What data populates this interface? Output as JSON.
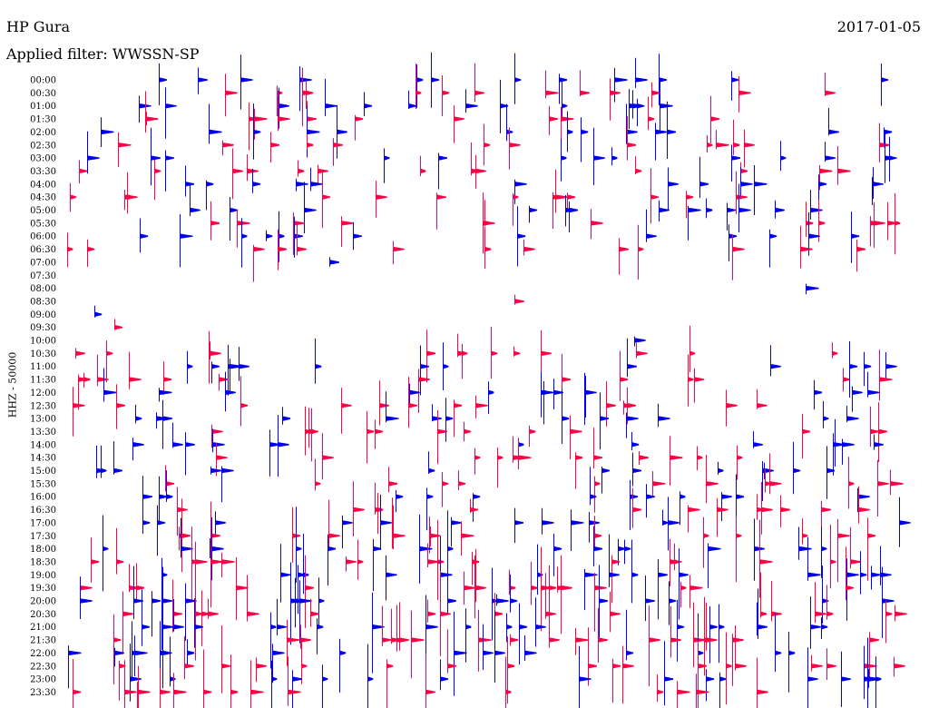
{
  "header": {
    "station": "HP Gura",
    "date": "2017-01-05",
    "filter_text": "Applied filter: WWSSN-SP"
  },
  "chart_data": {
    "type": "line",
    "title": "HP Gura",
    "subtitle": "Applied filter: WWSSN-SP",
    "date": "2017-01-05",
    "ylabel": "HHZ - 50000",
    "xlabel": "",
    "grid": false,
    "legend": "none",
    "colors": [
      "#0000ee",
      "#ff0044"
    ],
    "row_labels": [
      "00:00",
      "00:30",
      "01:00",
      "01:30",
      "02:00",
      "02:30",
      "03:00",
      "03:30",
      "04:00",
      "04:30",
      "05:00",
      "05:30",
      "06:00",
      "06:30",
      "07:00",
      "07:30",
      "08:00",
      "08:30",
      "09:00",
      "09:30",
      "10:00",
      "10:30",
      "11:00",
      "11:30",
      "12:00",
      "12:30",
      "13:00",
      "13:30",
      "14:00",
      "14:30",
      "15:00",
      "15:30",
      "16:00",
      "16:30",
      "17:00",
      "17:30",
      "18:00",
      "18:30",
      "19:00",
      "19:30",
      "20:00",
      "20:30",
      "21:00",
      "21:30",
      "22:00",
      "22:30",
      "23:00",
      "23:30"
    ],
    "activity": [
      1.0,
      1.0,
      1.0,
      1.0,
      1.0,
      1.0,
      1.0,
      1.0,
      1.0,
      1.0,
      1.0,
      1.0,
      1.0,
      1.0,
      0.2,
      0.0,
      0.05,
      0.05,
      0.05,
      0.05,
      0.3,
      1.0,
      1.0,
      1.0,
      1.0,
      1.0,
      1.0,
      1.0,
      1.0,
      1.0,
      1.0,
      1.0,
      1.0,
      1.0,
      1.0,
      1.2,
      1.3,
      1.3,
      1.3,
      1.4,
      1.4,
      1.4,
      1.5,
      1.5,
      1.4,
      1.4,
      1.3,
      1.2
    ]
  }
}
